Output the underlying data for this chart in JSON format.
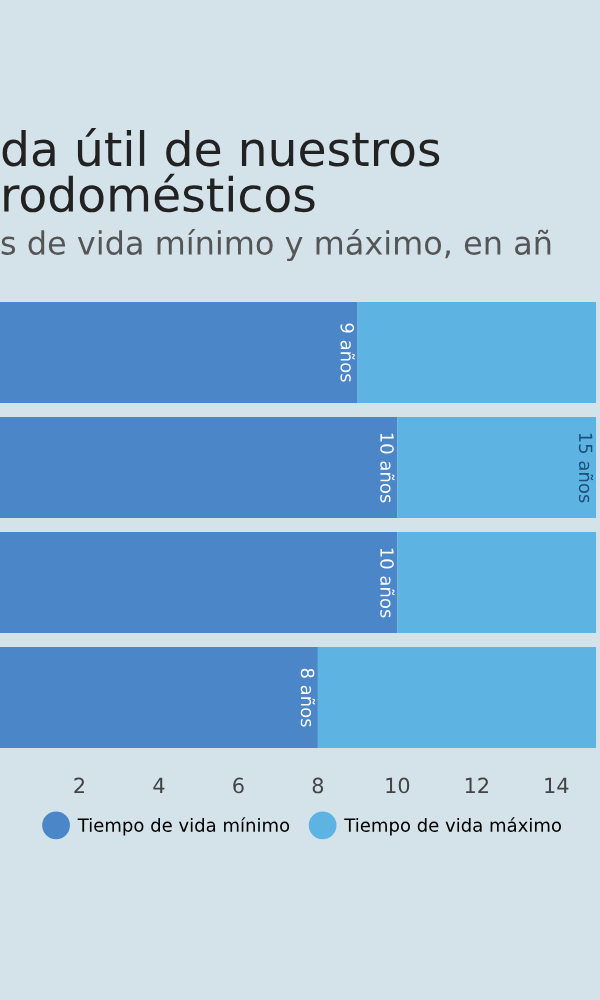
{
  "chart_data": {
    "type": "bar",
    "orientation": "horizontal",
    "stacked": true,
    "title": "da útil de nuestros\nrodomésticos",
    "subtitle": "s de vida mínimo y máximo, en añ",
    "categories": [
      null,
      null,
      null,
      null
    ],
    "series": [
      {
        "name": "Tiempo de vida mínimo",
        "color": "#4a86c8",
        "values": [
          9,
          10,
          10,
          8
        ],
        "value_labels": [
          "9 años",
          "10 años",
          "10 años",
          "8 años"
        ]
      },
      {
        "name": "Tiempo de vida máximo",
        "color": "#5db4e3",
        "values": [
          6,
          5,
          5,
          7
        ]
      }
    ],
    "totals": [
      null,
      "15 años",
      null,
      null
    ],
    "xlim": [
      0,
      15.1
    ],
    "xticks": [
      2,
      4,
      6,
      8,
      10,
      12,
      14
    ],
    "grid": false,
    "legend": "bottom"
  }
}
